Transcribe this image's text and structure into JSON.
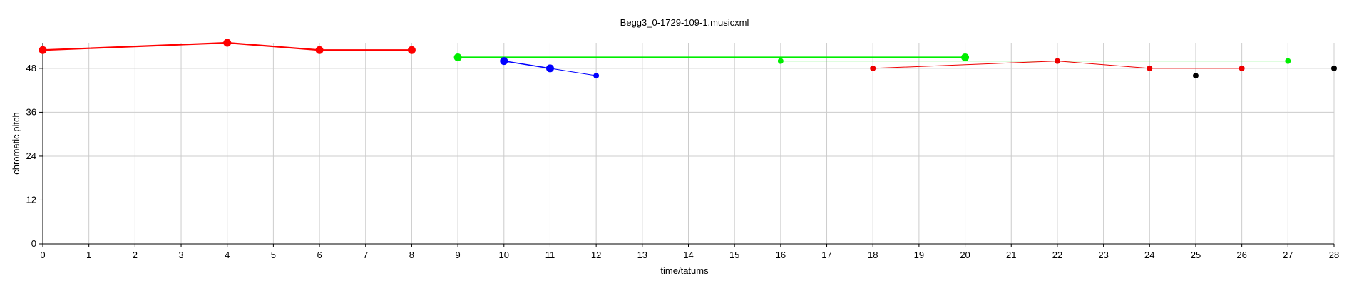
{
  "chart_data": {
    "type": "line",
    "title": "Begg3_0-1729-109-1.musicxml",
    "xlabel": "time/tatums",
    "ylabel": "chromatic pitch",
    "xlim": [
      0,
      28
    ],
    "ylim": [
      0,
      55
    ],
    "xticks": [
      0,
      1,
      2,
      3,
      4,
      5,
      6,
      7,
      8,
      9,
      10,
      11,
      12,
      13,
      14,
      15,
      16,
      17,
      18,
      19,
      20,
      21,
      22,
      23,
      24,
      25,
      26,
      27,
      28
    ],
    "yticks": [
      0,
      12,
      24,
      36,
      48
    ],
    "grid": true,
    "series": [
      {
        "color": "#ff0000",
        "line_weight": "thick",
        "marker": "large",
        "points": [
          [
            0,
            53
          ],
          [
            4,
            55
          ],
          [
            6,
            53
          ],
          [
            8,
            53
          ]
        ]
      },
      {
        "color": "#00ee00",
        "line_weight": "thick",
        "marker": "large",
        "points": [
          [
            9,
            51
          ],
          [
            20,
            51
          ]
        ]
      },
      {
        "color": "#0000ff",
        "line_weight": "medium",
        "marker": "large",
        "points": [
          [
            10,
            50
          ],
          [
            11,
            48
          ]
        ]
      },
      {
        "color": "#0000ff",
        "line_weight": "thin",
        "marker": "small",
        "points": [
          [
            11,
            48
          ],
          [
            12,
            46
          ]
        ]
      },
      {
        "color": "#00ee00",
        "line_weight": "thin",
        "marker": "small",
        "points": [
          [
            16,
            50
          ],
          [
            27,
            50
          ]
        ]
      },
      {
        "color": "#ee0000",
        "line_weight": "thin",
        "marker": "small",
        "points": [
          [
            18,
            48
          ],
          [
            22,
            50
          ],
          [
            24,
            48
          ],
          [
            26,
            48
          ]
        ]
      },
      {
        "color": "#000000",
        "line_weight": "none",
        "marker": "small",
        "points": [
          [
            25,
            46
          ],
          [
            28,
            48
          ]
        ]
      }
    ]
  }
}
